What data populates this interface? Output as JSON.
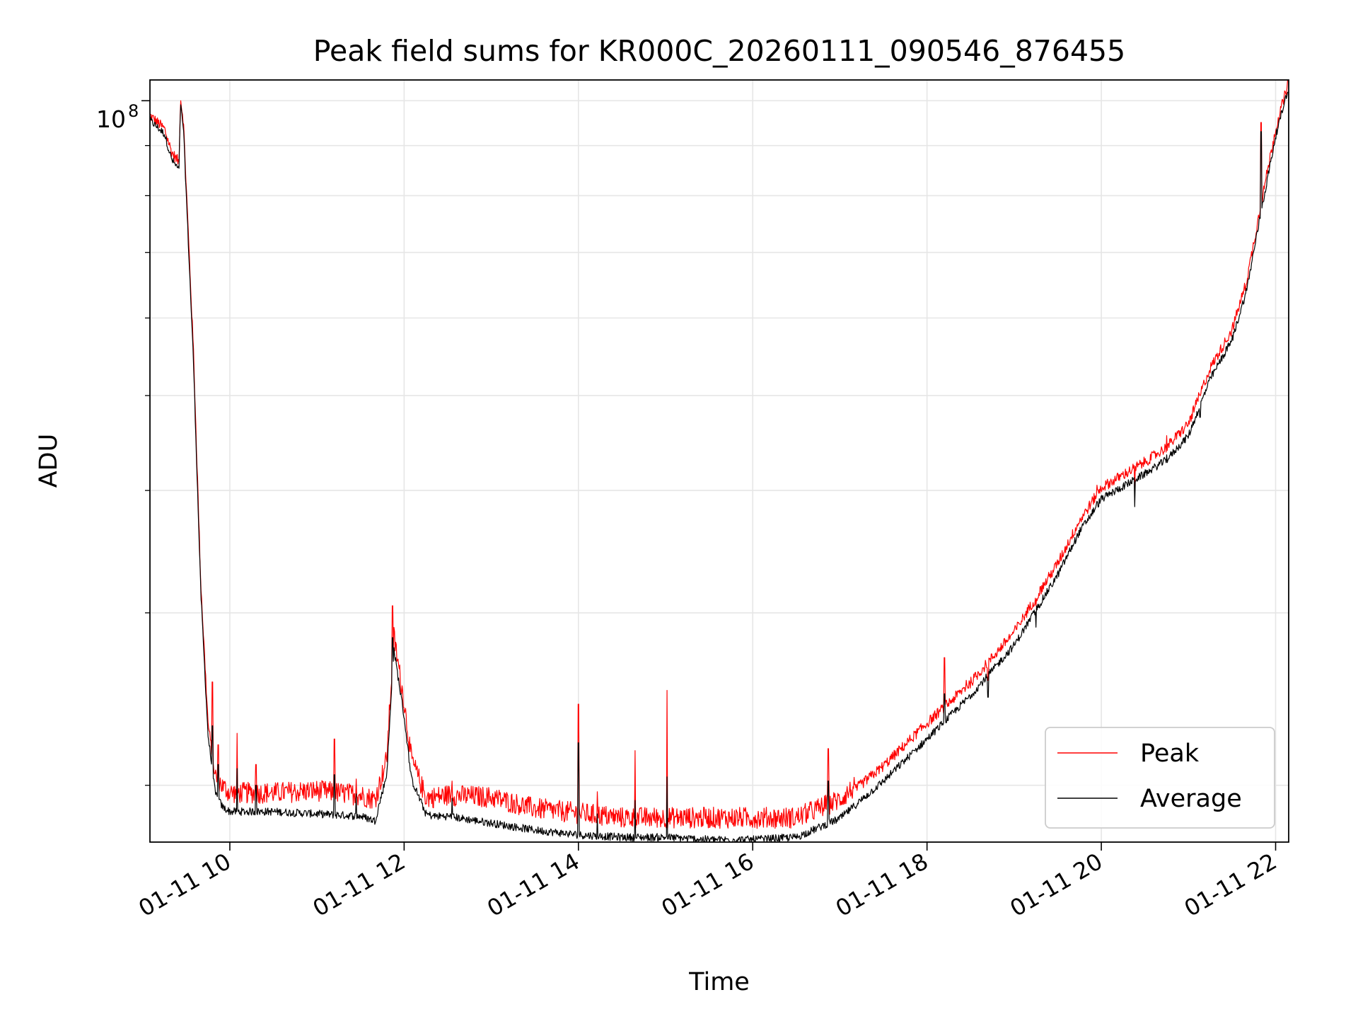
{
  "chart_data": {
    "type": "line",
    "title": "Peak field sums for KR000C_20260111_090546_876455",
    "xlabel": "Time",
    "ylabel": "ADU",
    "yscale": "log",
    "ylim": [
      17500000,
      105000000
    ],
    "xlim": [
      "2026-01-11 09:05",
      "2026-01-11 22:09"
    ],
    "x_ticks": [
      "01-11 10",
      "01-11 12",
      "01-11 14",
      "01-11 16",
      "01-11 18",
      "01-11 20",
      "01-11 22"
    ],
    "x_tick_values": [
      "2026-01-11 10:00",
      "2026-01-11 12:00",
      "2026-01-11 14:00",
      "2026-01-11 16:00",
      "2026-01-11 18:00",
      "2026-01-11 20:00",
      "2026-01-11 22:00"
    ],
    "y_tick_label_base": "10",
    "y_tick_label_exp": "8",
    "y_major_tick_value": 100000000,
    "y_minor_tick_values": [
      20000000,
      30000000,
      40000000,
      50000000,
      60000000,
      70000000,
      80000000,
      90000000
    ],
    "grid": true,
    "legend_position": "lower-right",
    "x": [
      "2026-01-11 09:05",
      "2026-01-11 09:15",
      "2026-01-11 09:20",
      "2026-01-11 09:25",
      "2026-01-11 09:26",
      "2026-01-11 09:28",
      "2026-01-11 09:35",
      "2026-01-11 09:40",
      "2026-01-11 09:45",
      "2026-01-11 09:50",
      "2026-01-11 09:55",
      "2026-01-11 10:00",
      "2026-01-11 10:30",
      "2026-01-11 11:00",
      "2026-01-11 11:30",
      "2026-01-11 11:40",
      "2026-01-11 11:48",
      "2026-01-11 11:53",
      "2026-01-11 12:00",
      "2026-01-11 12:05",
      "2026-01-11 12:15",
      "2026-01-11 12:20",
      "2026-01-11 12:30",
      "2026-01-11 13:00",
      "2026-01-11 13:30",
      "2026-01-11 14:00",
      "2026-01-11 14:30",
      "2026-01-11 15:00",
      "2026-01-11 15:30",
      "2026-01-11 16:00",
      "2026-01-11 16:30",
      "2026-01-11 17:00",
      "2026-01-11 17:30",
      "2026-01-11 18:00",
      "2026-01-11 18:30",
      "2026-01-11 19:00",
      "2026-01-11 19:30",
      "2026-01-11 19:45",
      "2026-01-11 20:00",
      "2026-01-11 20:30",
      "2026-01-11 20:45",
      "2026-01-11 21:00",
      "2026-01-11 21:15",
      "2026-01-11 21:30",
      "2026-01-11 21:40",
      "2026-01-11 21:50",
      "2026-01-11 22:00",
      "2026-01-11 22:09"
    ],
    "series": [
      {
        "name": "Peak",
        "color": "#ff0000",
        "values": [
          96000000,
          93000000,
          88000000,
          86000000,
          100000000,
          95000000,
          55000000,
          32000000,
          23000000,
          20200000,
          19700000,
          19400000,
          19400000,
          19500000,
          19300000,
          19100000,
          21000000,
          28000000,
          24000000,
          21000000,
          19200000,
          19200000,
          19300000,
          19200000,
          18700000,
          18500000,
          18300000,
          18300000,
          18300000,
          18300000,
          18300000,
          19100000,
          20800000,
          23000000,
          25300000,
          28500000,
          33500000,
          37000000,
          40000000,
          42500000,
          44000000,
          46500000,
          53000000,
          58000000,
          65000000,
          78000000,
          93000000,
          104000000
        ]
      },
      {
        "name": "Average",
        "color": "#000000",
        "values": [
          95500000,
          92500000,
          87000000,
          85000000,
          99000000,
          94000000,
          54000000,
          31500000,
          22500000,
          19600000,
          19000000,
          18800000,
          18800000,
          18700000,
          18600000,
          18400000,
          20500000,
          27500000,
          23500000,
          20300000,
          18700000,
          18600000,
          18600000,
          18300000,
          18000000,
          17800000,
          17700000,
          17700000,
          17600000,
          17600000,
          17700000,
          18500000,
          20200000,
          22300000,
          24700000,
          27800000,
          32800000,
          36300000,
          39200000,
          41600000,
          43000000,
          45500000,
          52000000,
          57000000,
          64000000,
          77000000,
          92000000,
          103500000
        ]
      }
    ],
    "spikes": [
      {
        "x": "2026-01-11 09:48",
        "peak": 25500000,
        "average": 23000000
      },
      {
        "x": "2026-01-11 09:52",
        "peak": 22000000,
        "average": 21000000
      },
      {
        "x": "2026-01-11 10:05",
        "peak": 22600000,
        "average": 20800000
      },
      {
        "x": "2026-01-11 10:18",
        "peak": 21000000,
        "average": 20000000
      },
      {
        "x": "2026-01-11 11:12",
        "peak": 22300000,
        "average": 20500000
      },
      {
        "x": "2026-01-11 11:27",
        "peak": 20300000,
        "average": 19600000
      },
      {
        "x": "2026-01-11 11:52",
        "peak": 30500000,
        "average": 28300000
      },
      {
        "x": "2026-01-11 12:33",
        "peak": 20200000,
        "average": 19400000
      },
      {
        "x": "2026-01-11 14:00",
        "peak": 24200000,
        "average": 22100000
      },
      {
        "x": "2026-01-11 14:13",
        "peak": 19700000,
        "average": 18700000
      },
      {
        "x": "2026-01-11 14:39",
        "peak": 21700000,
        "average": 19300000
      },
      {
        "x": "2026-01-11 15:01",
        "peak": 25000000,
        "average": 20400000
      },
      {
        "x": "2026-01-11 16:52",
        "peak": 21800000,
        "average": 20200000
      },
      {
        "x": "2026-01-11 18:12",
        "peak": 27000000,
        "average": 24800000
      },
      {
        "x": "2026-01-11 18:27",
        "peak": 25600000,
        "average": 24500000
      },
      {
        "x": "2026-01-11 18:42",
        "peak": 25600000,
        "average": 24600000
      },
      {
        "x": "2026-01-11 19:15",
        "peak": 30500000,
        "average": 29000000
      },
      {
        "x": "2026-01-11 19:57",
        "peak": 40500000,
        "average": 39000000
      },
      {
        "x": "2026-01-11 20:23",
        "peak": 40000000,
        "average": 38500000
      },
      {
        "x": "2026-01-11 20:45",
        "peak": 45500000,
        "average": 43500000
      },
      {
        "x": "2026-01-11 21:08",
        "peak": 50000000,
        "average": 47500000
      },
      {
        "x": "2026-01-11 21:50",
        "peak": 95000000,
        "average": 93000000
      }
    ]
  }
}
